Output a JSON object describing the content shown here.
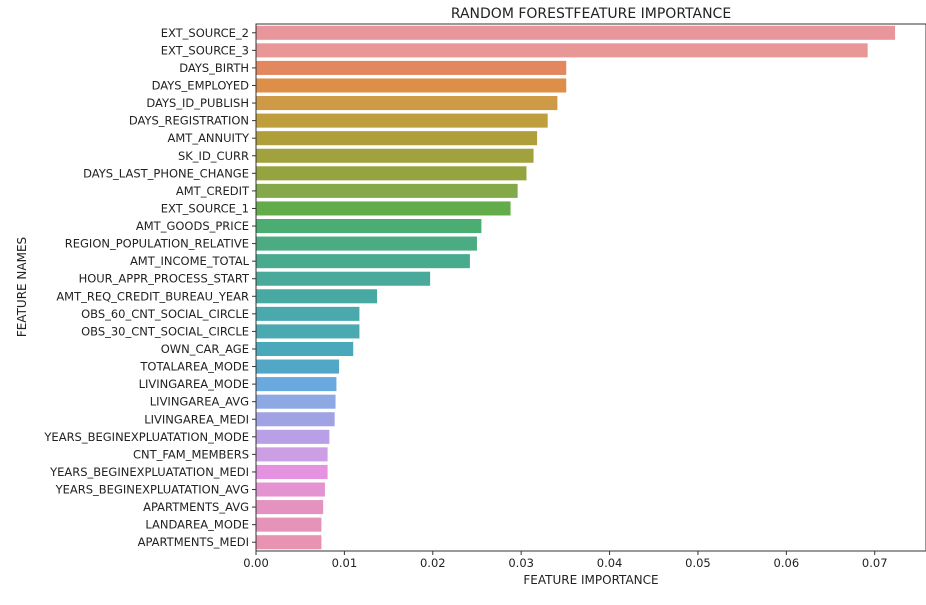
{
  "chart_data": {
    "type": "bar",
    "orientation": "horizontal",
    "title": "RANDOM FORESTFEATURE IMPORTANCE",
    "xlabel": "FEATURE IMPORTANCE",
    "ylabel": "FEATURE NAMES",
    "xlim": [
      0,
      0.0758
    ],
    "xticks": [
      "0.00",
      "0.01",
      "0.02",
      "0.03",
      "0.04",
      "0.05",
      "0.06",
      "0.07"
    ],
    "grid": false,
    "categories": [
      "EXT_SOURCE_2",
      "EXT_SOURCE_3",
      "DAYS_BIRTH",
      "DAYS_EMPLOYED",
      "DAYS_ID_PUBLISH",
      "DAYS_REGISTRATION",
      "AMT_ANNUITY",
      "SK_ID_CURR",
      "DAYS_LAST_PHONE_CHANGE",
      "AMT_CREDIT",
      "EXT_SOURCE_1",
      "AMT_GOODS_PRICE",
      "REGION_POPULATION_RELATIVE",
      "AMT_INCOME_TOTAL",
      "HOUR_APPR_PROCESS_START",
      "AMT_REQ_CREDIT_BUREAU_YEAR",
      "OBS_60_CNT_SOCIAL_CIRCLE",
      "OBS_30_CNT_SOCIAL_CIRCLE",
      "OWN_CAR_AGE",
      "TOTALAREA_MODE",
      "LIVINGAREA_MODE",
      "LIVINGAREA_AVG",
      "LIVINGAREA_MEDI",
      "YEARS_BEGINEXPLUATATION_MODE",
      "CNT_FAM_MEMBERS",
      "YEARS_BEGINEXPLUATATION_MEDI",
      "YEARS_BEGINEXPLUATATION_AVG",
      "APARTMENTS_AVG",
      "LANDAREA_MODE",
      "APARTMENTS_MEDI"
    ],
    "values": [
      0.0723,
      0.0692,
      0.0351,
      0.0351,
      0.0341,
      0.033,
      0.0318,
      0.0314,
      0.0306,
      0.0296,
      0.0288,
      0.0255,
      0.025,
      0.0242,
      0.0197,
      0.0137,
      0.0117,
      0.0117,
      0.011,
      0.0094,
      0.0091,
      0.009,
      0.0089,
      0.0083,
      0.0081,
      0.0081,
      0.0078,
      0.0076,
      0.0074,
      0.0074
    ],
    "colors": [
      "#e8969b",
      "#e89696",
      "#e3875e",
      "#dd8f4a",
      "#cf9a46",
      "#bf9e3e",
      "#ae9f3b",
      "#a1a23e",
      "#95a43e",
      "#84a84a",
      "#62ad4a",
      "#4cad72",
      "#4bac84",
      "#49ab8e",
      "#49a99a",
      "#48a9a3",
      "#49a9ad",
      "#4aa9b1",
      "#49a9bb",
      "#52a6c6",
      "#6aa9de",
      "#8ea8e3",
      "#a1a2e4",
      "#b99fe5",
      "#cc9ee3",
      "#e592e0",
      "#e493d0",
      "#e492c0",
      "#e693b9",
      "#e893b1"
    ]
  }
}
